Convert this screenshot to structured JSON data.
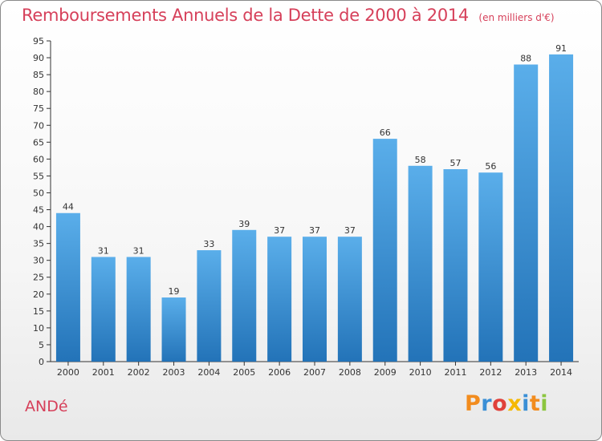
{
  "chart": {
    "title": "Remboursements Annuels de la Dette de 2000 à 2014",
    "unit": "(en milliers d'€)"
  },
  "commune": "ANDé",
  "logo": {
    "text": "Proxiti",
    "colors": [
      "#f28c1e",
      "#3a8fd6",
      "#e0413b",
      "#f5b800",
      "#3a8fd6",
      "#f28c1e",
      "#8cc63f"
    ]
  },
  "colors": {
    "title": "#d6405a",
    "bar_top": "#5aaeea",
    "bar_bottom": "#2373b8"
  },
  "chart_data": {
    "type": "bar",
    "categories": [
      "2000",
      "2001",
      "2002",
      "2003",
      "2004",
      "2005",
      "2006",
      "2007",
      "2008",
      "2009",
      "2010",
      "2011",
      "2012",
      "2013",
      "2014"
    ],
    "values": [
      44,
      31,
      31,
      19,
      33,
      39,
      37,
      37,
      37,
      66,
      58,
      57,
      56,
      88,
      91
    ],
    "title": "Remboursements Annuels de la Dette de 2000 à 2014",
    "subtitle": "(en milliers d'€)",
    "xlabel": "",
    "ylabel": "",
    "ylim": [
      0,
      95
    ],
    "yticks": [
      0,
      5,
      10,
      15,
      20,
      25,
      30,
      35,
      40,
      45,
      50,
      55,
      60,
      65,
      70,
      75,
      80,
      85,
      90,
      95
    ],
    "grid": false,
    "data_labels": true
  }
}
